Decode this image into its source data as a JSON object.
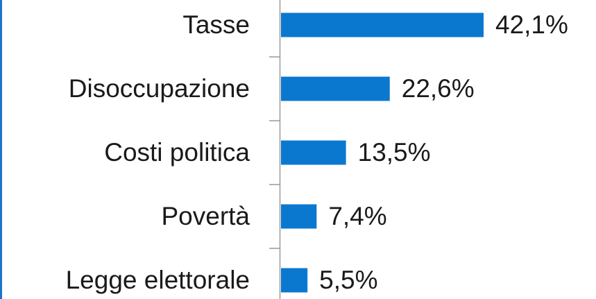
{
  "chart_data": {
    "type": "hbar",
    "categories": [
      "Tasse",
      "Disoccupazione",
      "Costi politica",
      "Povertà",
      "Legge elettorale"
    ],
    "values": [
      42.1,
      22.6,
      13.5,
      7.4,
      5.5
    ],
    "value_labels": [
      "42,1%",
      "22,6%",
      "13,5%",
      "7,4%",
      "5,5%"
    ],
    "color": "#0b78d0"
  }
}
